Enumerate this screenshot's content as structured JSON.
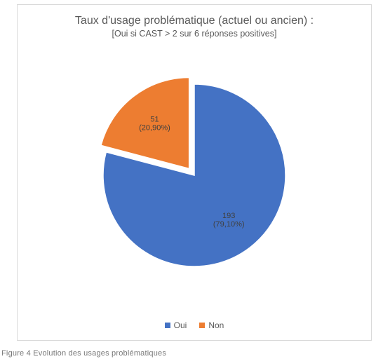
{
  "chart": {
    "type": "pie",
    "title": "Taux d'usage problématique (actuel ou ancien) :",
    "subtitle": "[Oui si CAST > 2 sur 6 réponses positives]",
    "title_fontsize": 16,
    "subtitle_fontsize": 12.5,
    "title_color": "#595959",
    "card_border_color": "#d9d9d9",
    "background_color": "#ffffff",
    "radius": 130,
    "explode_gap": 12,
    "slice_border_color": "#ffffff",
    "slice_border_width": 1.5,
    "start_angle_deg": -90,
    "slices": [
      {
        "key": "oui",
        "legend_label": "Oui",
        "count": 193,
        "percent_text": "(79,10%)",
        "fraction": 0.791,
        "color": "#4472c4",
        "exploded": false,
        "label_line1": "193",
        "label_line2": "(79,10%)"
      },
      {
        "key": "non",
        "legend_label": "Non",
        "count": 51,
        "percent_text": "(20,90%)",
        "fraction": 0.209,
        "color": "#ed7d31",
        "exploded": true,
        "label_line1": "51",
        "label_line2": "(20,90%)"
      }
    ],
    "legend": {
      "position": "bottom",
      "marker_size": 8,
      "fontsize": 12,
      "text_color": "#595959"
    },
    "label_fontsize": 11,
    "label_color": "#404040"
  },
  "caption": "Figure 4   Evolution des usages problématiques"
}
